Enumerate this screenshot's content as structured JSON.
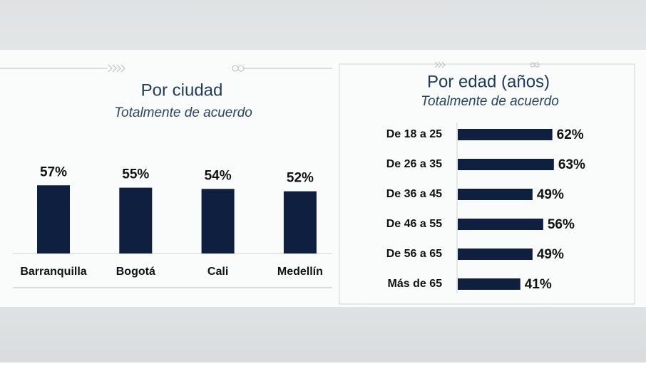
{
  "chart_data": [
    {
      "type": "bar",
      "title": "Por ciudad",
      "subtitle": "Totalmente de acuerdo",
      "categories": [
        "Barranquilla",
        "Bogotá",
        "Cali",
        "Medellín"
      ],
      "values": [
        57,
        55,
        54,
        52
      ],
      "value_labels": [
        "57%",
        "55%",
        "54%",
        "52%"
      ],
      "color": "#0e1f3f"
    },
    {
      "type": "barh",
      "title": "Por edad (años)",
      "subtitle": "Totalmente de acuerdo",
      "categories": [
        "De 18 a 25",
        "De 26 a 35",
        "De 36 a 45",
        "De 46 a 55",
        "De 56 a 65",
        "Más de 65"
      ],
      "values": [
        62,
        63,
        49,
        56,
        49,
        41
      ],
      "value_labels": [
        "62%",
        "63%",
        "49%",
        "56%",
        "49%",
        "41%"
      ],
      "color": "#0e1f3f"
    }
  ]
}
